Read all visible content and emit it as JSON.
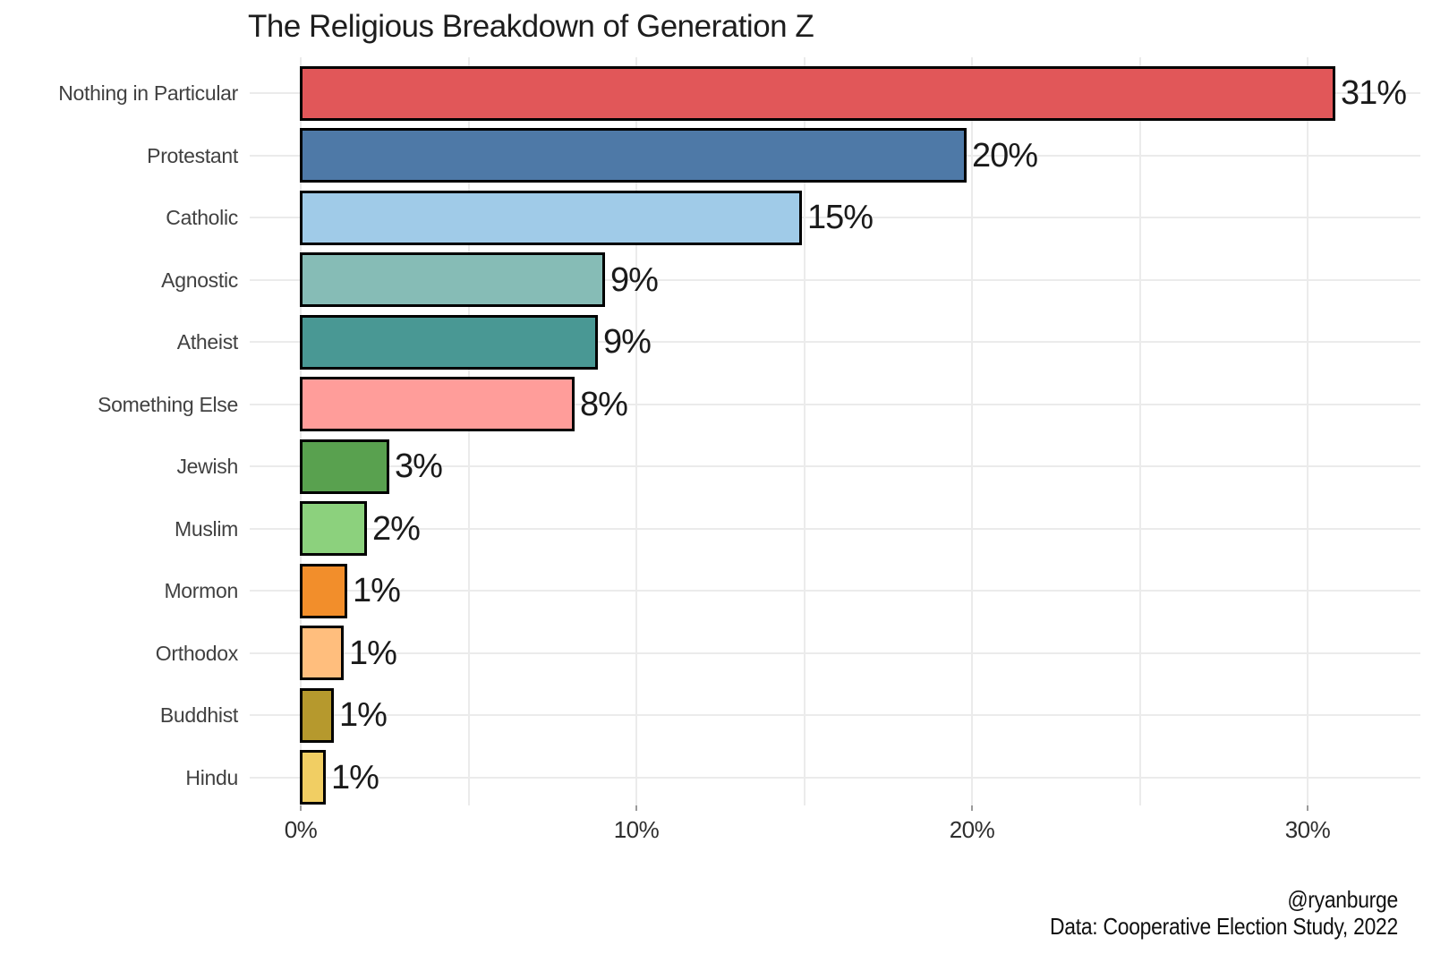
{
  "chart_data": {
    "type": "bar",
    "orientation": "horizontal",
    "title": "The Religious Breakdown of Generation Z",
    "categories": [
      "Nothing in Particular",
      "Protestant",
      "Catholic",
      "Agnostic",
      "Atheist",
      "Something Else",
      "Jewish",
      "Muslim",
      "Mormon",
      "Orthodox",
      "Buddhist",
      "Hindu"
    ],
    "values": [
      31,
      20,
      15,
      9,
      9,
      8,
      3,
      2,
      1,
      1,
      1,
      1
    ],
    "value_labels": [
      "31%",
      "20%",
      "15%",
      "9%",
      "9%",
      "8%",
      "3%",
      "2%",
      "1%",
      "1%",
      "1%",
      "1%"
    ],
    "bar_lengths_pct": [
      30.8,
      19.8,
      14.9,
      9.04,
      8.83,
      8.13,
      2.61,
      1.95,
      1.35,
      1.26,
      0.95,
      0.73
    ],
    "bar_colors": [
      "#e15759",
      "#4e79a7",
      "#a0cbe8",
      "#86bcb6",
      "#499894",
      "#ff9d9a",
      "#59a14f",
      "#8cd17d",
      "#f28e2b",
      "#ffbe7d",
      "#b6992d",
      "#f1ce63"
    ],
    "bar_border_color": "#000000",
    "xlabel": "",
    "ylabel": "",
    "xlim": [
      0,
      33.3
    ],
    "x_ticks": {
      "values": [
        0,
        10,
        20,
        30
      ],
      "labels": [
        "0%",
        "10%",
        "20%",
        "30%"
      ]
    },
    "x_minor_gridline_values": [
      5,
      15,
      25
    ],
    "gridline_color": "#ebebeb",
    "legend": "none"
  },
  "footer": {
    "credit": "@ryanburge",
    "source": "Data: Cooperative Election Study, 2022"
  }
}
